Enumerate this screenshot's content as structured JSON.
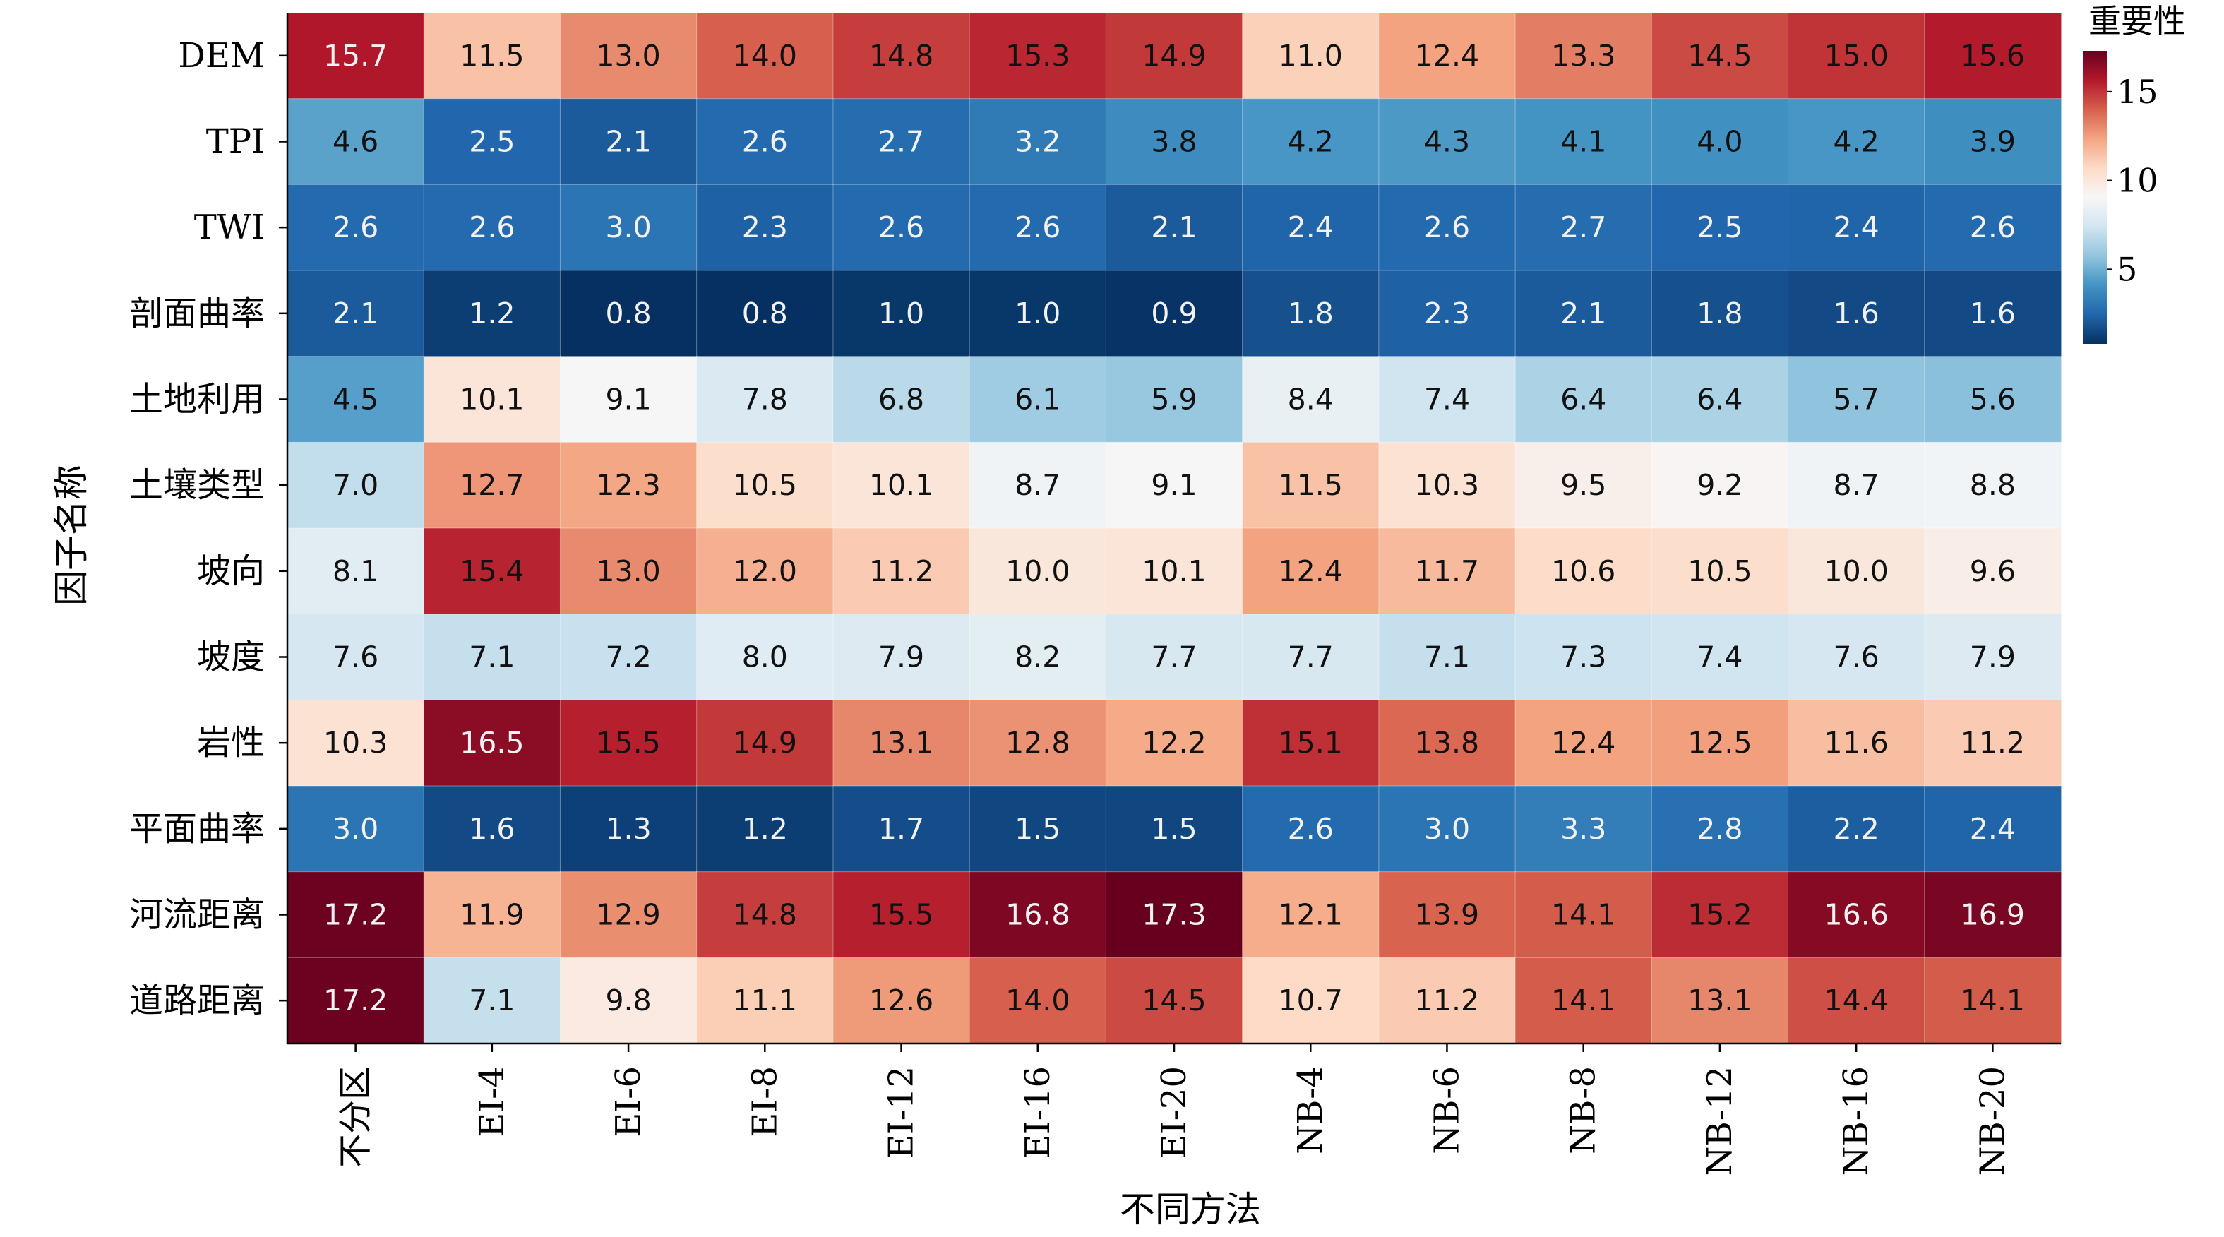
{
  "chart_data": {
    "type": "heatmap",
    "xlabel": "不同方法",
    "ylabel": "因子名称",
    "colorbar_title": "重要性",
    "columns": [
      "不分区",
      "EI-4",
      "EI-6",
      "EI-8",
      "EI-12",
      "EI-16",
      "EI-20",
      "NB-4",
      "NB-6",
      "NB-8",
      "NB-12",
      "NB-16",
      "NB-20"
    ],
    "rows": [
      "DEM",
      "TPI",
      "TWI",
      "剖面曲率",
      "土地利用",
      "土壤类型",
      "坡向",
      "坡度",
      "岩性",
      "平面曲率",
      "河流距离",
      "道路距离"
    ],
    "values": [
      [
        15.7,
        11.5,
        13.0,
        14.0,
        14.8,
        15.3,
        14.9,
        11.0,
        12.4,
        13.3,
        14.5,
        15.0,
        15.6
      ],
      [
        4.6,
        2.5,
        2.1,
        2.6,
        2.7,
        3.2,
        3.8,
        4.2,
        4.3,
        4.1,
        4.0,
        4.2,
        3.9
      ],
      [
        2.6,
        2.6,
        3.0,
        2.3,
        2.6,
        2.6,
        2.1,
        2.4,
        2.6,
        2.7,
        2.5,
        2.4,
        2.6
      ],
      [
        2.1,
        1.2,
        0.8,
        0.8,
        1.0,
        1.0,
        0.9,
        1.8,
        2.3,
        2.1,
        1.8,
        1.6,
        1.6
      ],
      [
        4.5,
        10.1,
        9.1,
        7.8,
        6.8,
        6.1,
        5.9,
        8.4,
        7.4,
        6.4,
        6.4,
        5.7,
        5.6
      ],
      [
        7.0,
        12.7,
        12.3,
        10.5,
        10.1,
        8.7,
        9.1,
        11.5,
        10.3,
        9.5,
        9.2,
        8.7,
        8.8
      ],
      [
        8.1,
        15.4,
        13.0,
        12.0,
        11.2,
        10.0,
        10.1,
        12.4,
        11.7,
        10.6,
        10.5,
        10.0,
        9.6
      ],
      [
        7.6,
        7.1,
        7.2,
        8.0,
        7.9,
        8.2,
        7.7,
        7.7,
        7.1,
        7.3,
        7.4,
        7.6,
        7.9
      ],
      [
        10.3,
        16.5,
        15.5,
        14.9,
        13.1,
        12.8,
        12.2,
        15.1,
        13.8,
        12.4,
        12.5,
        11.6,
        11.2
      ],
      [
        3.0,
        1.6,
        1.3,
        1.2,
        1.7,
        1.5,
        1.5,
        2.6,
        3.0,
        3.3,
        2.8,
        2.2,
        2.4
      ],
      [
        17.2,
        11.9,
        12.9,
        14.8,
        15.5,
        16.8,
        17.3,
        12.1,
        13.9,
        14.1,
        15.2,
        16.6,
        16.9
      ],
      [
        17.2,
        7.1,
        9.8,
        11.1,
        12.6,
        14.0,
        14.5,
        10.7,
        11.2,
        14.1,
        13.1,
        14.4,
        14.1
      ]
    ],
    "vmin": 0.8,
    "vmax": 17.3,
    "colorbar_ticks": [
      5,
      10,
      15
    ],
    "colormap": [
      "#053061",
      "#2166ac",
      "#4393c3",
      "#92c5de",
      "#d1e5f0",
      "#f7f7f7",
      "#fddbc7",
      "#f4a582",
      "#d6604d",
      "#b2182b",
      "#67001f"
    ]
  }
}
